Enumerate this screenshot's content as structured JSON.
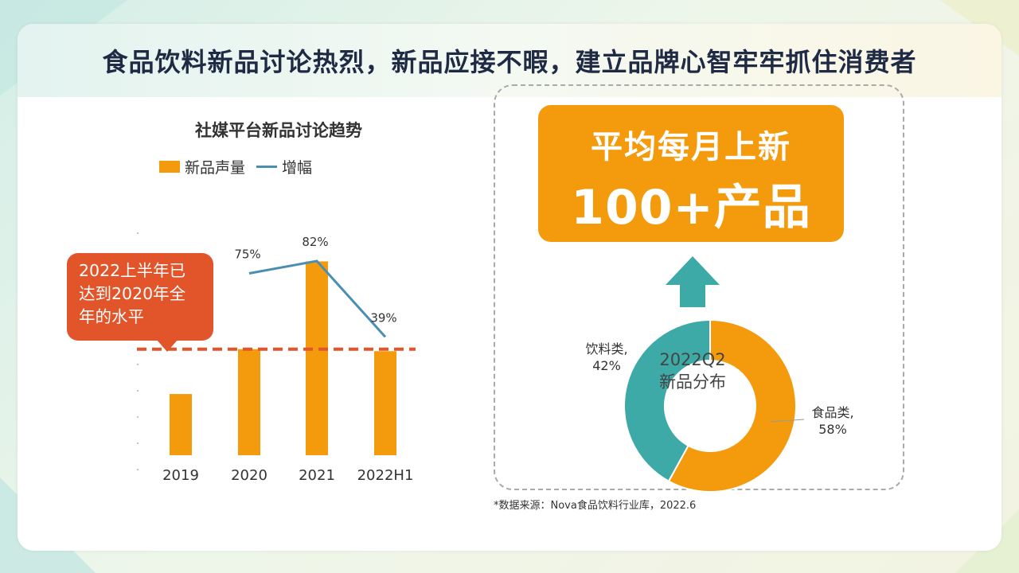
{
  "header": {
    "title": "食品饮料新品讨论热烈，新品应接不暇，建立品牌心智牢牢抓住消费者"
  },
  "chart_data": [
    {
      "type": "bar",
      "title": "社媒平台新品讨论趋势",
      "categories": [
        "2019",
        "2020",
        "2021",
        "2022H1"
      ],
      "series": [
        {
          "name": "新品声量",
          "kind": "bar",
          "values": [
            30,
            52,
            95,
            51
          ]
        },
        {
          "name": "增幅",
          "kind": "line",
          "values": [
            null,
            75,
            82,
            39
          ],
          "labels": [
            "",
            "75%",
            "82%",
            "39%"
          ]
        }
      ],
      "colors": {
        "bar": "#f49a0d",
        "line": "#4a8fb0",
        "reference": "#e2542a"
      },
      "reference_line": {
        "value": 52,
        "style": "dashed"
      },
      "annotation": "2022上半年已达到2020年全年的水平",
      "ylim": [
        0,
        110
      ],
      "grid": false,
      "legend_position": "top"
    },
    {
      "type": "pie",
      "title": "2022Q2新品分布",
      "labels": [
        "食品类",
        "饮料类"
      ],
      "values": [
        58,
        42
      ],
      "display_labels": [
        "食品类,\n58%",
        "饮料类,\n42%"
      ],
      "colors": [
        "#f49a0d",
        "#3eaaa8"
      ]
    }
  ],
  "callout": {
    "lines": [
      "2022上半年已",
      "达到2020年全",
      "年的水平"
    ]
  },
  "highlight": {
    "line1": "平均每月上新",
    "line2": "100+产品"
  },
  "donut_center": {
    "line1": "2022Q2",
    "line2": "新品分布"
  },
  "legend": {
    "bar_label": "新品声量",
    "line_label": "增幅"
  },
  "source": "*数据来源：Nova食品饮料行业库，2022.6"
}
